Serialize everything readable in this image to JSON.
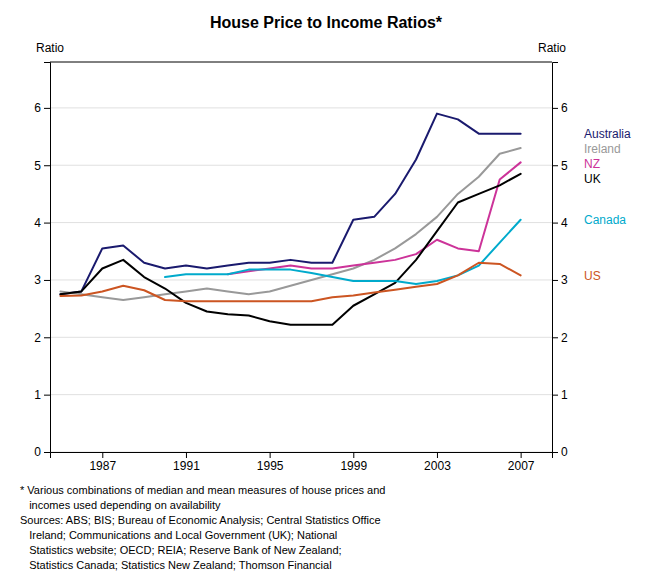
{
  "chart_data": {
    "type": "line",
    "title": "House Price to Income Ratios*",
    "y_label": "Ratio",
    "y2_label": "Ratio",
    "xlim": [
      1984.5,
      2008.5
    ],
    "xticks": [
      1987,
      1991,
      1995,
      1999,
      2003,
      2007
    ],
    "ylim": [
      0,
      6.8
    ],
    "yticks": [
      0,
      1,
      2,
      3,
      4,
      5,
      6
    ],
    "y2lim": [
      0,
      6.8
    ],
    "y2ticks": [
      0,
      1,
      2,
      3,
      4,
      5,
      6
    ],
    "grid": true,
    "series": [
      {
        "name": "Australia",
        "color": "#1a1a6e",
        "x": [
          1985,
          1986,
          1987,
          1988,
          1989,
          1990,
          1991,
          1992,
          1993,
          1994,
          1995,
          1996,
          1997,
          1998,
          1999,
          2000,
          2001,
          2002,
          2003,
          2004,
          2005,
          2006,
          2007
        ],
        "values": [
          2.75,
          2.8,
          3.55,
          3.6,
          3.3,
          3.2,
          3.25,
          3.2,
          3.25,
          3.3,
          3.3,
          3.35,
          3.3,
          3.3,
          4.05,
          4.1,
          4.5,
          5.1,
          5.9,
          5.8,
          5.55,
          5.55,
          5.55
        ]
      },
      {
        "name": "Ireland",
        "color": "#999999",
        "x": [
          1985,
          1986,
          1987,
          1988,
          1989,
          1990,
          1991,
          1992,
          1993,
          1994,
          1995,
          1996,
          1997,
          1998,
          1999,
          2000,
          2001,
          2002,
          2003,
          2004,
          2005,
          2006,
          2007
        ],
        "values": [
          2.8,
          2.75,
          2.7,
          2.65,
          2.7,
          2.75,
          2.8,
          2.85,
          2.8,
          2.75,
          2.8,
          2.9,
          3.0,
          3.1,
          3.2,
          3.35,
          3.55,
          3.8,
          4.1,
          4.5,
          4.8,
          5.2,
          5.3
        ]
      },
      {
        "name": "NZ",
        "color": "#cc3399",
        "x": [
          1993,
          1994,
          1995,
          1996,
          1997,
          1998,
          1999,
          2000,
          2001,
          2002,
          2003,
          2004,
          2005,
          2006,
          2007
        ],
        "values": [
          3.1,
          3.15,
          3.2,
          3.25,
          3.2,
          3.2,
          3.25,
          3.3,
          3.35,
          3.45,
          3.7,
          3.55,
          3.5,
          4.75,
          5.05
        ]
      },
      {
        "name": "UK",
        "color": "#000000",
        "x": [
          1985,
          1986,
          1987,
          1988,
          1989,
          1990,
          1991,
          1992,
          1993,
          1994,
          1995,
          1996,
          1997,
          1998,
          1999,
          2000,
          2001,
          2002,
          2003,
          2004,
          2005,
          2006,
          2007
        ],
        "values": [
          2.75,
          2.8,
          3.2,
          3.35,
          3.05,
          2.85,
          2.6,
          2.45,
          2.4,
          2.38,
          2.28,
          2.22,
          2.22,
          2.22,
          2.55,
          2.75,
          2.95,
          3.35,
          3.85,
          4.35,
          4.5,
          4.65,
          4.85
        ]
      },
      {
        "name": "Canada",
        "color": "#00aacc",
        "x": [
          1990,
          1991,
          1992,
          1993,
          1994,
          1995,
          1996,
          1997,
          1998,
          1999,
          2000,
          2001,
          2002,
          2003,
          2004,
          2005,
          2006,
          2007
        ],
        "values": [
          3.05,
          3.1,
          3.1,
          3.1,
          3.18,
          3.18,
          3.18,
          3.12,
          3.05,
          2.98,
          2.98,
          2.98,
          2.93,
          2.98,
          3.08,
          3.25,
          3.65,
          4.05
        ]
      },
      {
        "name": "US",
        "color": "#cc5522",
        "x": [
          1985,
          1986,
          1987,
          1988,
          1989,
          1990,
          1991,
          1992,
          1993,
          1994,
          1995,
          1996,
          1997,
          1998,
          1999,
          2000,
          2001,
          2002,
          2003,
          2004,
          2005,
          2006,
          2007
        ],
        "values": [
          2.72,
          2.73,
          2.8,
          2.9,
          2.82,
          2.65,
          2.63,
          2.63,
          2.63,
          2.63,
          2.63,
          2.63,
          2.63,
          2.7,
          2.73,
          2.78,
          2.83,
          2.88,
          2.93,
          3.08,
          3.3,
          3.28,
          3.08
        ]
      }
    ],
    "footnote": [
      "* Various combinations of median and mean measures of house prices and",
      "   incomes used depending on availability",
      "Sources: ABS; BIS; Bureau of Economic Analysis; Central Statistics Office",
      "   Ireland; Communications and Local Government (UK); National",
      "   Statistics website; OECD; REIA; Reserve Bank of New Zealand;",
      "   Statistics Canada; Statistics New Zealand; Thomson Financial"
    ]
  }
}
